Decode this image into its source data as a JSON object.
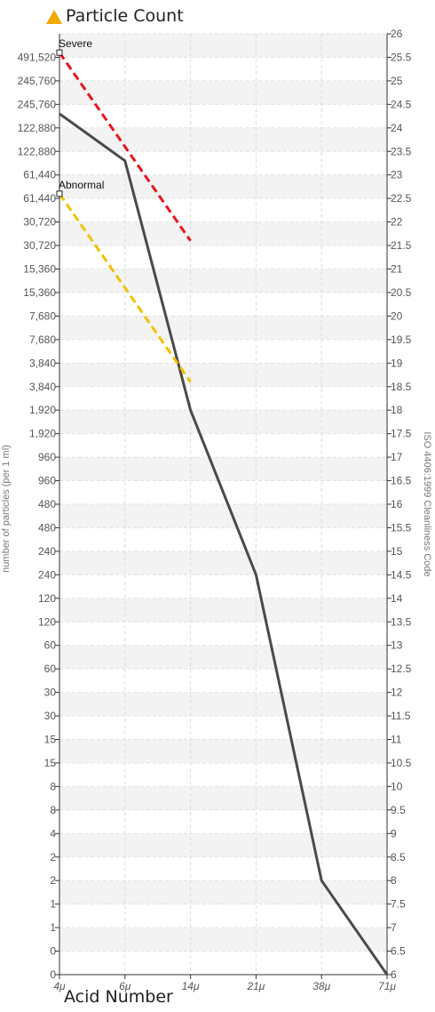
{
  "legend": {
    "icon": "triangle-icon",
    "icon_color": "#f2a900",
    "label": "Particle Count"
  },
  "x_axis_title": "Acid Number",
  "chart_data": {
    "type": "line",
    "title": "",
    "xlabel": "Acid Number",
    "ylabel": "number of particles (per 1 ml)",
    "y2label": "ISO 4406:1999 Cleanliness Code",
    "categories": [
      "4μ",
      "6μ",
      "14μ",
      "21μ",
      "38μ",
      "71μ"
    ],
    "left_tick_labels": [
      "0",
      "0",
      "1",
      "1",
      "2",
      "2",
      "4",
      "8",
      "8",
      "15",
      "15",
      "30",
      "30",
      "60",
      "60",
      "120",
      "120",
      "240",
      "240",
      "480",
      "480",
      "960",
      "960",
      "1,920",
      "1,920",
      "3,840",
      "3,840",
      "7,680",
      "7,680",
      "15,360",
      "15,360",
      "30,720",
      "30,720",
      "61,440",
      "61,440",
      "122,880",
      "122,880",
      "245,760",
      "245,760",
      "491,520"
    ],
    "right_ticks": [
      6,
      6.5,
      7,
      7.5,
      8,
      8.5,
      9,
      9.5,
      10,
      10.5,
      11,
      11.5,
      12,
      12.5,
      13,
      13.5,
      14,
      14.5,
      15,
      15.5,
      16,
      16.5,
      17,
      17.5,
      18,
      18.5,
      19,
      19.5,
      20,
      20.5,
      21,
      21.5,
      22,
      22.5,
      23,
      23.5,
      24,
      24.5,
      25,
      25.5,
      26
    ],
    "ylim": [
      6,
      26
    ],
    "grid": true,
    "series": [
      {
        "values": [
          24.3,
          23.3,
          18,
          14.5,
          8,
          6
        ],
        "color": "#4a4a4a",
        "style": "solid"
      },
      {
        "name": "Severe",
        "x": [
          "4μ",
          "14μ"
        ],
        "values": [
          25.6,
          21.6
        ],
        "color": "#e8141c",
        "style": "dashed"
      },
      {
        "name": "Abnormal",
        "x": [
          "4μ",
          "14μ"
        ],
        "values": [
          22.6,
          18.6
        ],
        "color": "#f2c000",
        "style": "dashed"
      }
    ]
  }
}
